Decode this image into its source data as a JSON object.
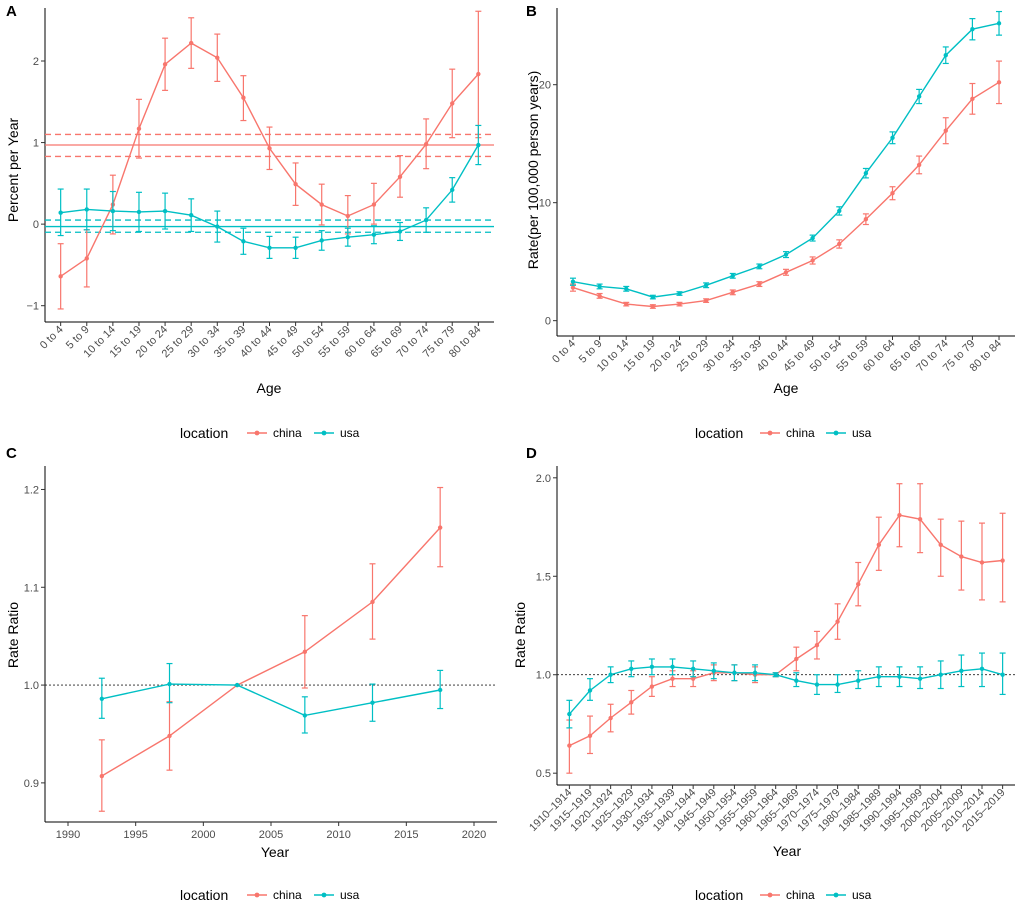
{
  "colors": {
    "china": "#F8766D",
    "usa": "#00BFC4"
  },
  "chart_data": [
    {
      "panel": "A",
      "type": "line",
      "xlabel": "Age",
      "ylabel": "Percent per Year",
      "categories": [
        "0 to 4",
        "5 to 9",
        "10 to 14",
        "15 to 19",
        "20 to 24",
        "25 to 29",
        "30 to 34",
        "35 to 39",
        "40 to 44",
        "45 to 49",
        "50 to 54",
        "55 to 59",
        "60 to 64",
        "65 to 69",
        "70 to 74",
        "75 to 79",
        "80 to 84"
      ],
      "ylim": [
        -1.2,
        2.65
      ],
      "yticks": [
        -1,
        0,
        1,
        2
      ],
      "yticklabels": [
        "−1",
        "0",
        "1",
        "2"
      ],
      "series": [
        {
          "name": "china",
          "values": [
            -0.64,
            -0.42,
            0.24,
            1.17,
            1.96,
            2.22,
            2.04,
            1.55,
            0.93,
            0.49,
            0.24,
            0.1,
            0.24,
            0.58,
            0.98,
            1.48,
            1.84
          ],
          "lower": [
            -1.04,
            -0.77,
            -0.12,
            0.81,
            1.64,
            1.91,
            1.75,
            1.27,
            0.67,
            0.23,
            -0.01,
            -0.12,
            0.0,
            0.33,
            0.68,
            1.06,
            1.06
          ],
          "upper": [
            -0.24,
            -0.07,
            0.6,
            1.53,
            2.28,
            2.53,
            2.33,
            1.82,
            1.19,
            0.75,
            0.49,
            0.35,
            0.5,
            0.84,
            1.29,
            1.9,
            2.61
          ]
        },
        {
          "name": "usa",
          "values": [
            0.14,
            0.18,
            0.16,
            0.15,
            0.16,
            0.11,
            -0.03,
            -0.21,
            -0.29,
            -0.29,
            -0.2,
            -0.16,
            -0.13,
            -0.09,
            0.05,
            0.42,
            0.97
          ],
          "lower": [
            -0.14,
            -0.07,
            -0.08,
            -0.09,
            -0.06,
            -0.09,
            -0.22,
            -0.37,
            -0.42,
            -0.42,
            -0.32,
            -0.27,
            -0.24,
            -0.2,
            -0.1,
            0.27,
            0.73
          ],
          "upper": [
            0.43,
            0.43,
            0.4,
            0.39,
            0.38,
            0.31,
            0.16,
            -0.05,
            -0.15,
            -0.16,
            -0.08,
            -0.05,
            -0.02,
            0.02,
            0.2,
            0.57,
            1.21
          ]
        }
      ],
      "hlines": [
        {
          "series": "china",
          "solid": 0.97,
          "dashed": [
            0.83,
            1.1
          ]
        },
        {
          "series": "usa",
          "solid": -0.03,
          "dashed": [
            -0.1,
            0.05
          ]
        }
      ]
    },
    {
      "panel": "B",
      "type": "line",
      "xlabel": "Age",
      "ylabel": "Rate(per 100,000 person years)",
      "categories": [
        "0 to 4",
        "5 to 9",
        "10 to 14",
        "15 to 19",
        "20 to 24",
        "25 to 29",
        "30 to 34",
        "35 to 39",
        "40 to 44",
        "45 to 49",
        "50 to 54",
        "55 to 59",
        "60 to 64",
        "65 to 69",
        "70 to 74",
        "75 to 79",
        "80 to 84"
      ],
      "ylim": [
        -1.3,
        26.5
      ],
      "yticks": [
        0,
        10,
        20
      ],
      "yticklabels": [
        "0",
        "10",
        "20"
      ],
      "series": [
        {
          "name": "china",
          "values": [
            2.8,
            2.1,
            1.4,
            1.2,
            1.4,
            1.7,
            2.4,
            3.1,
            4.1,
            5.1,
            6.5,
            8.6,
            10.8,
            13.2,
            16.1,
            18.8,
            20.2
          ],
          "lower": [
            2.5,
            1.9,
            1.25,
            1.05,
            1.25,
            1.55,
            2.2,
            2.9,
            3.85,
            4.8,
            6.15,
            8.15,
            10.25,
            12.45,
            15.0,
            17.5,
            18.4
          ],
          "upper": [
            3.1,
            2.3,
            1.55,
            1.35,
            1.55,
            1.85,
            2.6,
            3.3,
            4.35,
            5.4,
            6.85,
            9.05,
            11.35,
            13.95,
            17.2,
            20.1,
            22.0
          ]
        },
        {
          "name": "usa",
          "values": [
            3.3,
            2.9,
            2.7,
            2.0,
            2.3,
            3.0,
            3.8,
            4.6,
            5.6,
            7.0,
            9.3,
            12.5,
            15.5,
            19.0,
            22.5,
            24.7,
            25.2
          ],
          "lower": [
            3.0,
            2.7,
            2.5,
            1.85,
            2.15,
            2.8,
            3.6,
            4.4,
            5.35,
            6.75,
            8.95,
            12.1,
            15.0,
            18.4,
            21.8,
            23.8,
            24.2
          ],
          "upper": [
            3.6,
            3.1,
            2.9,
            2.15,
            2.45,
            3.2,
            4.0,
            4.8,
            5.85,
            7.25,
            9.65,
            12.9,
            16.0,
            19.6,
            23.2,
            25.6,
            26.2
          ]
        }
      ]
    },
    {
      "panel": "C",
      "type": "line",
      "xlabel": "Year",
      "ylabel": "Rate Ratio",
      "xlim": [
        1988.3,
        2021.7
      ],
      "xticks": [
        1990,
        1995,
        2000,
        2005,
        2010,
        2015,
        2020
      ],
      "ylim": [
        0.86,
        1.224
      ],
      "yticks": [
        0.9,
        1.0,
        1.1,
        1.2
      ],
      "yticklabels": [
        "0.9",
        "1.0",
        "1.1",
        "1.2"
      ],
      "refline": 1.0,
      "series": [
        {
          "name": "china",
          "x": [
            1992.5,
            1997.5,
            2002.5,
            2007.5,
            2012.5,
            2017.5
          ],
          "values": [
            0.907,
            0.948,
            1.0,
            1.034,
            1.085,
            1.161
          ],
          "lower": [
            0.871,
            0.913,
            1.0,
            0.997,
            1.047,
            1.121
          ],
          "upper": [
            0.944,
            0.983,
            1.0,
            1.071,
            1.124,
            1.202
          ]
        },
        {
          "name": "usa",
          "x": [
            1992.5,
            1997.5,
            2002.5,
            2007.5,
            2012.5,
            2017.5
          ],
          "values": [
            0.986,
            1.001,
            1.0,
            0.969,
            0.982,
            0.995
          ],
          "lower": [
            0.966,
            0.982,
            1.0,
            0.951,
            0.963,
            0.976
          ],
          "upper": [
            1.007,
            1.022,
            1.0,
            0.988,
            1.001,
            1.015
          ]
        }
      ]
    },
    {
      "panel": "D",
      "type": "line",
      "xlabel": "Year",
      "ylabel": "Rate Ratio",
      "categories": [
        "1910–1914",
        "1915–1919",
        "1920–1924",
        "1925–1929",
        "1930–1934",
        "1935–1939",
        "1940–1944",
        "1945–1949",
        "1950–1954",
        "1955–1959",
        "1960–1964",
        "1965–1969",
        "1970–1974",
        "1975–1979",
        "1980–1984",
        "1985–1989",
        "1990–1994",
        "1995–1999",
        "2000–2004",
        "2005–2009",
        "2010–2014",
        "2015–2019"
      ],
      "ylim": [
        0.44,
        2.06
      ],
      "yticks": [
        0.5,
        1.0,
        1.5,
        2.0
      ],
      "yticklabels": [
        "0.5",
        "1.0",
        "1.5",
        "2.0"
      ],
      "refline": 1.0,
      "series": [
        {
          "name": "china",
          "values": [
            0.64,
            0.69,
            0.78,
            0.86,
            0.94,
            0.98,
            0.98,
            1.01,
            1.01,
            1.0,
            1.0,
            1.08,
            1.15,
            1.27,
            1.46,
            1.66,
            1.81,
            1.79,
            1.66,
            1.6,
            1.57,
            1.58
          ],
          "lower": [
            0.5,
            0.6,
            0.71,
            0.8,
            0.89,
            0.94,
            0.94,
            0.97,
            0.97,
            0.96,
            0.99,
            1.02,
            1.08,
            1.18,
            1.35,
            1.53,
            1.65,
            1.62,
            1.5,
            1.43,
            1.38,
            1.37
          ],
          "upper": [
            0.77,
            0.79,
            0.85,
            0.92,
            0.99,
            1.02,
            1.02,
            1.05,
            1.05,
            1.04,
            1.01,
            1.14,
            1.22,
            1.36,
            1.57,
            1.8,
            1.97,
            1.97,
            1.79,
            1.78,
            1.77,
            1.82
          ]
        },
        {
          "name": "usa",
          "values": [
            0.8,
            0.92,
            1.0,
            1.03,
            1.04,
            1.04,
            1.03,
            1.02,
            1.01,
            1.01,
            1.0,
            0.97,
            0.95,
            0.95,
            0.97,
            0.99,
            0.99,
            0.98,
            1.0,
            1.02,
            1.03,
            1.0
          ],
          "lower": [
            0.73,
            0.87,
            0.96,
            0.99,
            1.0,
            1.0,
            0.99,
            0.98,
            0.97,
            0.97,
            0.99,
            0.94,
            0.9,
            0.91,
            0.93,
            0.94,
            0.94,
            0.93,
            0.93,
            0.94,
            0.94,
            0.9
          ],
          "upper": [
            0.87,
            0.98,
            1.04,
            1.07,
            1.08,
            1.08,
            1.07,
            1.06,
            1.05,
            1.05,
            1.01,
            1.01,
            1.0,
            1.0,
            1.02,
            1.04,
            1.04,
            1.04,
            1.07,
            1.1,
            1.11,
            1.11
          ]
        }
      ]
    }
  ],
  "legend": {
    "title": "location",
    "items": [
      "china",
      "usa"
    ]
  }
}
